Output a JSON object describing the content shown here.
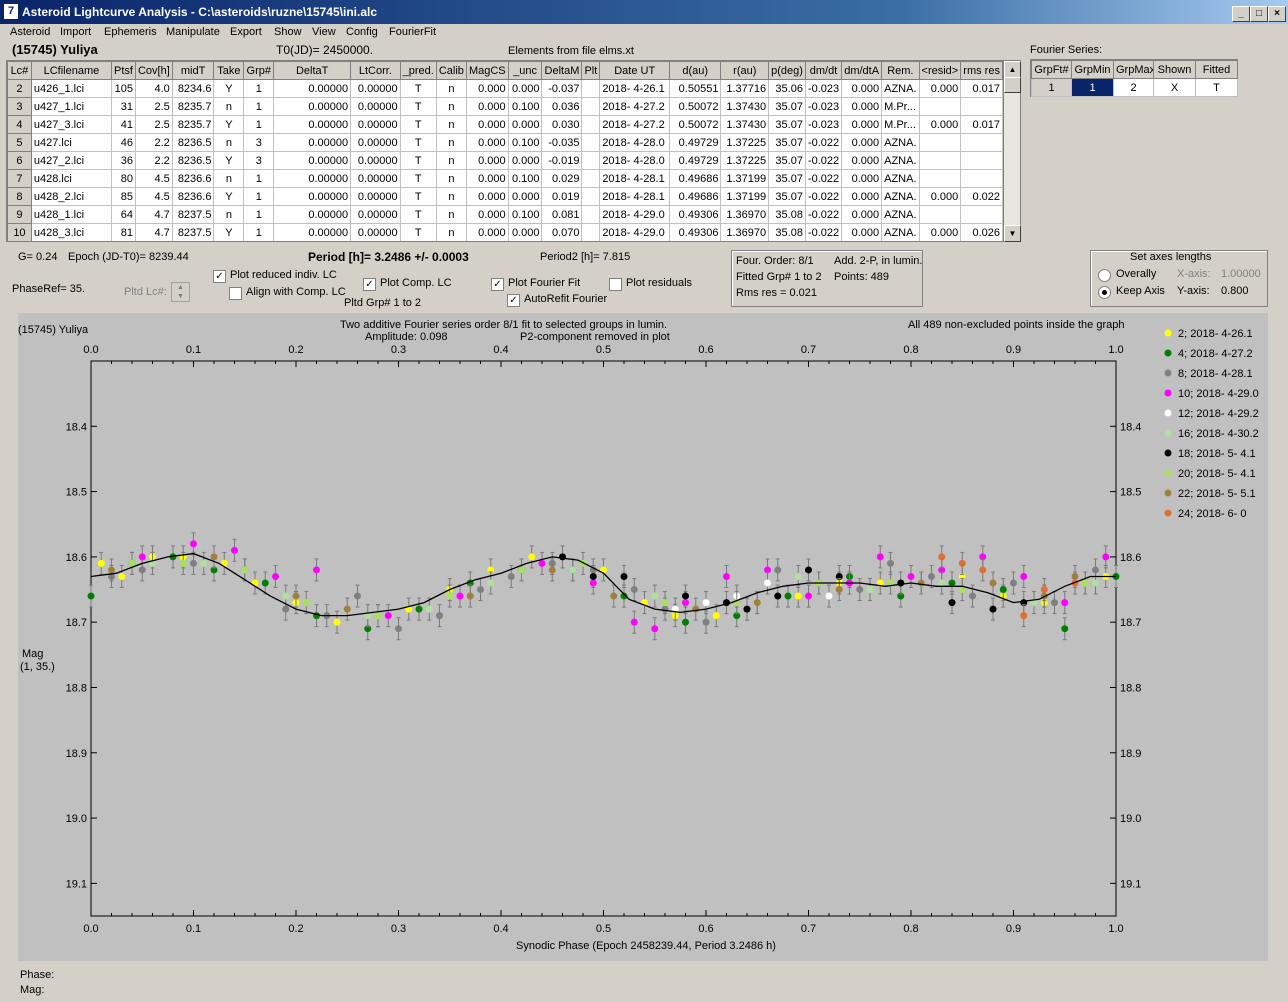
{
  "window": {
    "title": "Asteroid Lightcurve Analysis - C:\\asteroids\\ruzne\\15745\\ini.alc",
    "app_icon": "7"
  },
  "menu": [
    "Asteroid",
    "Import",
    "Ephemeris",
    "Manipulate",
    "Export",
    "Show",
    "View",
    "Config",
    "FourierFit"
  ],
  "header": {
    "asteroid": "(15745) Yuliya",
    "t0": "T0(JD)= 2450000.",
    "elements": "Elements from file elms.xt"
  },
  "grid": {
    "columns": [
      "Lc#",
      "LCfilename",
      "Ptsf",
      "Cov[h]",
      "midT",
      "Take",
      "Grp#",
      "DeltaT",
      "LtCorr.",
      "_pred.",
      "Calib",
      "MagCS",
      "_unc",
      "DeltaM",
      "Plt",
      "Date UT",
      "d(au)",
      "r(au)",
      "p(deg)",
      "dm/dt",
      "dm/dtA",
      "Rem.",
      "<resid>",
      "rms res"
    ],
    "rows": [
      [
        "2",
        "u426_1.lci",
        "105",
        "4.0",
        "8234.6",
        "Y",
        "1",
        "0.00000",
        "0.00000",
        "T",
        "n",
        "0.000",
        "0.000",
        "-0.037",
        "",
        "2018- 4-26.1",
        "0.50551",
        "1.37716",
        "35.06",
        "-0.023",
        "0.000",
        "AZNA.",
        "0.000",
        "0.017"
      ],
      [
        "3",
        "u427_1.lci",
        "31",
        "2.5",
        "8235.7",
        "n",
        "1",
        "0.00000",
        "0.00000",
        "T",
        "n",
        "0.000",
        "0.100",
        "0.036",
        "",
        "2018- 4-27.2",
        "0.50072",
        "1.37430",
        "35.07",
        "-0.023",
        "0.000",
        "M.Pr...",
        "",
        ""
      ],
      [
        "4",
        "u427_3.lci",
        "41",
        "2.5",
        "8235.7",
        "Y",
        "1",
        "0.00000",
        "0.00000",
        "T",
        "n",
        "0.000",
        "0.000",
        "0.030",
        "",
        "2018- 4-27.2",
        "0.50072",
        "1.37430",
        "35.07",
        "-0.023",
        "0.000",
        "M.Pr...",
        "0.000",
        "0.017"
      ],
      [
        "5",
        "u427.lci",
        "46",
        "2.2",
        "8236.5",
        "n",
        "3",
        "0.00000",
        "0.00000",
        "T",
        "n",
        "0.000",
        "0.100",
        "-0.035",
        "",
        "2018- 4-28.0",
        "0.49729",
        "1.37225",
        "35.07",
        "-0.022",
        "0.000",
        "AZNA.",
        "",
        ""
      ],
      [
        "6",
        "u427_2.lci",
        "36",
        "2.2",
        "8236.5",
        "Y",
        "3",
        "0.00000",
        "0.00000",
        "T",
        "n",
        "0.000",
        "0.000",
        "-0.019",
        "",
        "2018- 4-28.0",
        "0.49729",
        "1.37225",
        "35.07",
        "-0.022",
        "0.000",
        "AZNA.",
        "",
        ""
      ],
      [
        "7",
        "u428.lci",
        "80",
        "4.5",
        "8236.6",
        "n",
        "1",
        "0.00000",
        "0.00000",
        "T",
        "n",
        "0.000",
        "0.100",
        "0.029",
        "",
        "2018- 4-28.1",
        "0.49686",
        "1.37199",
        "35.07",
        "-0.022",
        "0.000",
        "AZNA.",
        "",
        ""
      ],
      [
        "8",
        "u428_2.lci",
        "85",
        "4.5",
        "8236.6",
        "Y",
        "1",
        "0.00000",
        "0.00000",
        "T",
        "n",
        "0.000",
        "0.000",
        "0.019",
        "",
        "2018- 4-28.1",
        "0.49686",
        "1.37199",
        "35.07",
        "-0.022",
        "0.000",
        "AZNA.",
        "0.000",
        "0.022"
      ],
      [
        "9",
        "u428_1.lci",
        "64",
        "4.7",
        "8237.5",
        "n",
        "1",
        "0.00000",
        "0.00000",
        "T",
        "n",
        "0.000",
        "0.100",
        "0.081",
        "",
        "2018- 4-29.0",
        "0.49306",
        "1.36970",
        "35.08",
        "-0.022",
        "0.000",
        "AZNA.",
        "",
        ""
      ],
      [
        "10",
        "u428_3.lci",
        "81",
        "4.7",
        "8237.5",
        "Y",
        "1",
        "0.00000",
        "0.00000",
        "T",
        "n",
        "0.000",
        "0.000",
        "0.070",
        "",
        "2018- 4-29.0",
        "0.49306",
        "1.36970",
        "35.08",
        "-0.022",
        "0.000",
        "AZNA.",
        "0.000",
        "0.026"
      ]
    ]
  },
  "fourier": {
    "title": "Fourier Series:",
    "columns": [
      "GrpFt#",
      "GrpMin",
      "GrpMax",
      "Shown",
      "Fitted"
    ],
    "row": [
      "1",
      "1",
      "2",
      "X",
      "T"
    ]
  },
  "info": {
    "g": "G= 0.24",
    "epoch": "Epoch (JD-T0)= 8239.44",
    "period": "Period [h]= 3.2486 +/- 0.0003",
    "period2": "Period2 [h]= 7.815",
    "phase_ref": "PhaseRef= 35.",
    "pltd_lc": "Pltd Lc#:",
    "pltd_grp": "Pltd Grp#  1   to   2"
  },
  "checkboxes": {
    "plot_reduced": {
      "label": "Plot reduced indiv. LC",
      "checked": true
    },
    "align_comp": {
      "label": "Align with Comp. LC",
      "checked": false
    },
    "plot_comp": {
      "label": "Plot Comp. LC",
      "checked": true
    },
    "plot_fourier": {
      "label": "Plot Fourier Fit",
      "checked": true
    },
    "autorefit": {
      "label": "AutoRefit Fourier",
      "checked": true
    },
    "plot_residuals": {
      "label": "Plot residuals",
      "checked": false
    }
  },
  "fitbox": {
    "order": "Four. Order:  8/1",
    "add": "Add. 2-P, in lumin.",
    "fitted": "Fitted Grp# 1 to 2",
    "points": "Points: 489",
    "rms": "Rms res      = 0.021"
  },
  "axes_box": {
    "title": "Set axes lengths",
    "overally": "Overally",
    "keep": "Keep Axis",
    "xaxis_label": "X-axis:",
    "xaxis_val": "1.00000",
    "yaxis_label": "Y-axis:",
    "yaxis_val": "0.800",
    "selected": "keep"
  },
  "plot_text": {
    "name": "(15745) Yuliya",
    "line1": "Two additive Fourier series order 8/1 fit to selected groups in lumin.",
    "amp": "Amplitude: 0.098",
    "p2": "P2-component removed in plot",
    "points_note": "All 489 non-excluded points inside the graph",
    "ylabel": "Mag",
    "ylabel2": "(1, 35.)"
  },
  "status": {
    "phase": "Phase:",
    "mag": "Mag:"
  },
  "chart_data": {
    "type": "scatter",
    "xlabel": "Synodic Phase (Epoch 2458239.44, Period 3.2486 h)",
    "ylabel": "Mag",
    "xlim": [
      0.0,
      1.0
    ],
    "ylim": [
      18.3,
      19.15
    ],
    "y_inverted": true,
    "x_ticks": [
      "0.0",
      "0.1",
      "0.2",
      "0.3",
      "0.4",
      "0.5",
      "0.6",
      "0.7",
      "0.8",
      "0.9",
      "1.0"
    ],
    "y_ticks": [
      "18.4",
      "18.5",
      "18.6",
      "18.7",
      "18.8",
      "18.9",
      "19.0",
      "19.1"
    ],
    "fit_curve": {
      "x": [
        0.0,
        0.025,
        0.05,
        0.075,
        0.1,
        0.125,
        0.15,
        0.175,
        0.2,
        0.225,
        0.25,
        0.275,
        0.3,
        0.325,
        0.35,
        0.375,
        0.4,
        0.425,
        0.45,
        0.475,
        0.5,
        0.525,
        0.55,
        0.575,
        0.6,
        0.625,
        0.65,
        0.675,
        0.7,
        0.725,
        0.75,
        0.775,
        0.8,
        0.825,
        0.85,
        0.875,
        0.9,
        0.925,
        0.95,
        0.975,
        1.0
      ],
      "y": [
        18.63,
        18.625,
        18.61,
        18.6,
        18.595,
        18.61,
        18.635,
        18.66,
        18.68,
        18.69,
        18.69,
        18.685,
        18.68,
        18.67,
        18.65,
        18.635,
        18.625,
        18.61,
        18.6,
        18.605,
        18.625,
        18.665,
        18.68,
        18.685,
        18.68,
        18.67,
        18.655,
        18.645,
        18.64,
        18.64,
        18.64,
        18.645,
        18.64,
        18.645,
        18.645,
        18.655,
        18.67,
        18.665,
        18.645,
        18.63,
        18.63
      ]
    },
    "series": [
      {
        "name": "2; 2018- 4-26.1",
        "color": "#ffff00",
        "x": [
          0.01,
          0.03,
          0.06,
          0.09,
          0.13,
          0.16,
          0.2,
          0.24,
          0.28,
          0.31,
          0.35,
          0.39,
          0.43,
          0.46,
          0.5,
          0.54,
          0.57,
          0.61,
          0.65,
          0.69,
          0.73,
          0.77,
          0.81,
          0.85,
          0.89,
          0.93,
          0.97,
          0.99
        ],
        "y": [
          18.61,
          18.63,
          18.6,
          18.6,
          18.61,
          18.64,
          18.67,
          18.7,
          18.69,
          18.68,
          18.65,
          18.62,
          18.6,
          18.6,
          18.62,
          18.67,
          18.69,
          18.69,
          18.67,
          18.66,
          18.64,
          18.64,
          18.64,
          18.63,
          18.66,
          18.67,
          18.64,
          18.63
        ]
      },
      {
        "name": "4; 2018- 4-27.2",
        "color": "#008000",
        "x": [
          0.0,
          0.04,
          0.08,
          0.12,
          0.17,
          0.22,
          0.27,
          0.32,
          0.37,
          0.42,
          0.47,
          0.52,
          0.58,
          0.63,
          0.68,
          0.74,
          0.79,
          0.84,
          0.89,
          0.95,
          1.0
        ],
        "y": [
          18.66,
          18.61,
          18.6,
          18.62,
          18.64,
          18.69,
          18.71,
          18.68,
          18.64,
          18.62,
          18.62,
          18.66,
          18.7,
          18.69,
          18.66,
          18.63,
          18.66,
          18.64,
          18.65,
          18.71,
          18.63
        ]
      },
      {
        "name": "8; 2018- 4-28.1",
        "color": "#808080",
        "x": [
          0.02,
          0.05,
          0.1,
          0.15,
          0.19,
          0.23,
          0.26,
          0.3,
          0.34,
          0.38,
          0.41,
          0.45,
          0.49,
          0.53,
          0.56,
          0.6,
          0.64,
          0.67,
          0.71,
          0.75,
          0.78,
          0.82,
          0.86,
          0.9,
          0.94,
          0.98
        ],
        "y": [
          18.63,
          18.62,
          18.61,
          18.62,
          18.68,
          18.69,
          18.66,
          18.71,
          18.69,
          18.65,
          18.63,
          18.61,
          18.62,
          18.65,
          18.68,
          18.7,
          18.68,
          18.62,
          18.64,
          18.65,
          18.61,
          18.63,
          18.66,
          18.64,
          18.67,
          18.62
        ]
      },
      {
        "name": "10; 2018- 4-29.0",
        "color": "#ff00ff",
        "x": [
          0.05,
          0.1,
          0.14,
          0.18,
          0.22,
          0.29,
          0.36,
          0.44,
          0.49,
          0.53,
          0.55,
          0.58,
          0.62,
          0.66,
          0.7,
          0.74,
          0.77,
          0.8,
          0.83,
          0.87,
          0.91,
          0.95,
          0.99
        ],
        "y": [
          18.6,
          18.58,
          18.59,
          18.63,
          18.62,
          18.69,
          18.66,
          18.61,
          18.64,
          18.7,
          18.71,
          18.67,
          18.63,
          18.62,
          18.66,
          18.64,
          18.6,
          18.63,
          18.62,
          18.6,
          18.63,
          18.67,
          18.6
        ]
      },
      {
        "name": "12; 2018- 4-29.2",
        "color": "#ffffff",
        "x": [
          0.57,
          0.6,
          0.63,
          0.66,
          0.72
        ],
        "y": [
          18.68,
          18.67,
          18.66,
          18.64,
          18.66
        ]
      },
      {
        "name": "16; 2018- 4-30.2",
        "color": "#b0e0a0",
        "x": [
          0.06,
          0.11,
          0.19,
          0.27,
          0.33,
          0.39,
          0.47,
          0.55,
          0.62,
          0.69,
          0.76,
          0.83,
          0.92,
          0.98
        ],
        "y": [
          18.61,
          18.61,
          18.66,
          18.69,
          18.68,
          18.64,
          18.62,
          18.66,
          18.67,
          18.63,
          18.65,
          18.64,
          18.67,
          18.64
        ]
      },
      {
        "name": "18; 2018- 5- 4.1",
        "color": "#000000",
        "x": [
          0.46,
          0.49,
          0.52,
          0.58,
          0.62,
          0.64,
          0.67,
          0.7,
          0.73,
          0.79,
          0.84,
          0.88,
          0.91
        ],
        "y": [
          18.6,
          18.63,
          18.63,
          18.66,
          18.67,
          18.68,
          18.66,
          18.62,
          18.63,
          18.64,
          18.67,
          18.68,
          18.67
        ]
      },
      {
        "name": "20; 2018- 5- 4.1",
        "color": "#a8e060",
        "x": [
          0.04,
          0.09,
          0.15,
          0.21,
          0.28,
          0.35,
          0.42,
          0.48,
          0.56,
          0.63,
          0.71,
          0.78,
          0.85,
          0.93,
          0.97
        ],
        "y": [
          18.61,
          18.61,
          18.62,
          18.67,
          18.69,
          18.66,
          18.62,
          18.61,
          18.67,
          18.67,
          18.64,
          18.64,
          18.65,
          18.66,
          18.64
        ]
      },
      {
        "name": "22; 2018- 5- 5.1",
        "color": "#a08040",
        "x": [
          0.02,
          0.12,
          0.2,
          0.25,
          0.37,
          0.45,
          0.51,
          0.59,
          0.65,
          0.73,
          0.81,
          0.88,
          0.93,
          0.96
        ],
        "y": [
          18.62,
          18.6,
          18.66,
          18.68,
          18.66,
          18.62,
          18.66,
          18.68,
          18.67,
          18.65,
          18.64,
          18.64,
          18.66,
          18.63
        ]
      },
      {
        "name": "24; 2018- 6- 0",
        "color": "#e07030",
        "x": [
          0.83,
          0.85,
          0.87,
          0.91,
          0.93,
          0.96
        ],
        "y": [
          18.6,
          18.61,
          18.62,
          18.69,
          18.65,
          18.64
        ]
      }
    ]
  }
}
